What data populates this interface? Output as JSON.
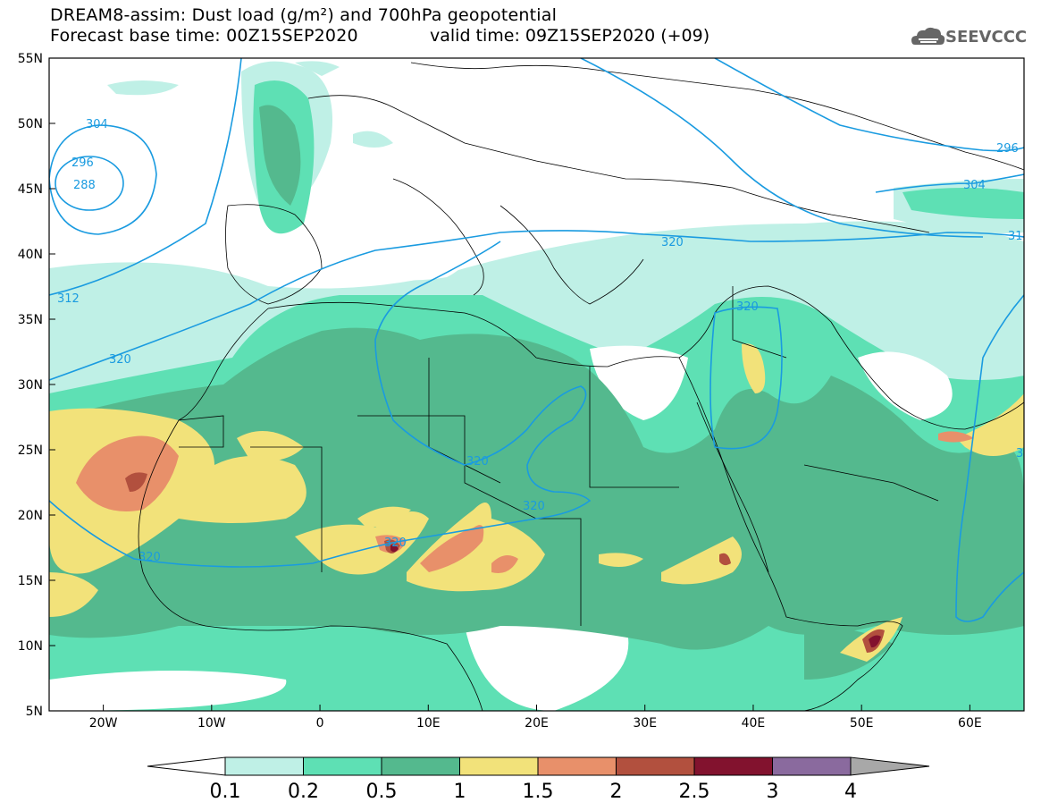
{
  "header": {
    "title_line1": "DREAM8-assim: Dust load (g/m²) and 700hPa geopotential",
    "title_line2": "Forecast base time: 00Z15SEP2020",
    "valid_time": "valid time: 09Z15SEP2020 (+09)",
    "logo_text": "SEEVCCC"
  },
  "map": {
    "lat_labels": [
      "55N",
      "50N",
      "45N",
      "40N",
      "35N",
      "30N",
      "25N",
      "20N",
      "15N",
      "10N",
      "5N"
    ],
    "lon_labels": [
      "20W",
      "10W",
      "0",
      "10E",
      "20E",
      "30E",
      "40E",
      "50E",
      "60E"
    ],
    "contour_labels": [
      "304",
      "296",
      "288",
      "312",
      "320",
      "320",
      "320",
      "320",
      "320",
      "320",
      "320",
      "296",
      "304",
      "31",
      "3"
    ]
  },
  "colorbar": {
    "labels": [
      "0.1",
      "0.2",
      "0.5",
      "1",
      "1.5",
      "2",
      "2.5",
      "3",
      "4"
    ],
    "colors": [
      "#bff0e6",
      "#5ee0b4",
      "#54b98e",
      "#f2e27a",
      "#e8906a",
      "#b2503e",
      "#82122e",
      "#8a6a9e",
      "#a8a8a8"
    ]
  },
  "colors": {
    "contour": "#1a9be0",
    "c1": "#bff0e6",
    "c2": "#5ee0b4",
    "c3": "#54b98e",
    "c4": "#f2e27a",
    "c5": "#e8906a",
    "c6": "#b2503e",
    "c7": "#82122e"
  }
}
